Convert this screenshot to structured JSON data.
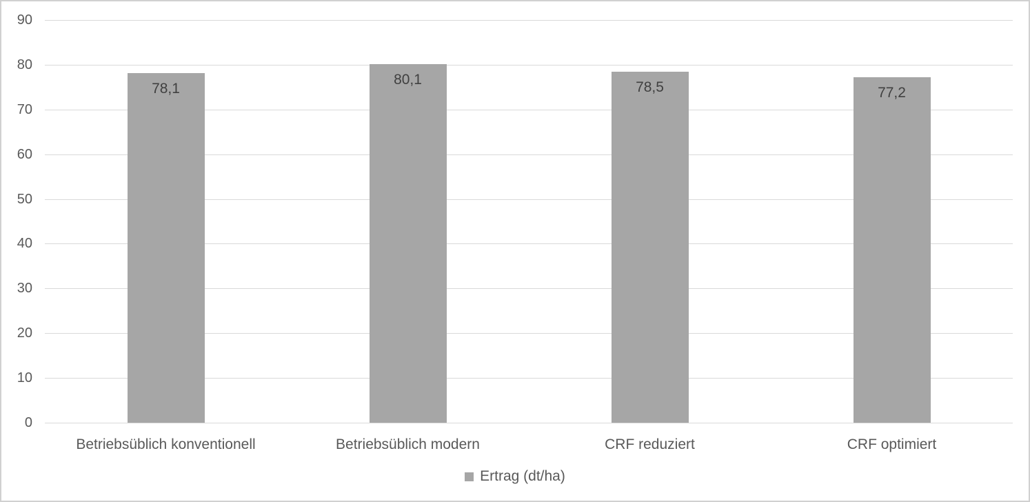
{
  "chart_data": {
    "type": "bar",
    "title": "",
    "xlabel": "",
    "ylabel": "",
    "categories": [
      "Betriebsüblich konventionell",
      "Betriebsüblich modern",
      "CRF reduziert",
      "CRF optimiert"
    ],
    "series": [
      {
        "name": "Ertrag (dt/ha)",
        "values": [
          78.1,
          80.1,
          78.5,
          77.2
        ],
        "value_labels": [
          "78,1",
          "80,1",
          "78,5",
          "77,2"
        ]
      }
    ],
    "ylim": [
      0,
      90
    ],
    "ytick_step": 10,
    "ytick_labels": [
      "0",
      "10",
      "20",
      "30",
      "40",
      "50",
      "60",
      "70",
      "80",
      "90"
    ],
    "grid": true,
    "legend_position": "bottom",
    "colors": {
      "bar": "#a6a6a6",
      "gridline": "#d9d9d9",
      "axis_text": "#595959",
      "value_label_text": "#404040",
      "chart_border": "#d0d0d0",
      "background": "#ffffff"
    }
  },
  "legend": {
    "label": "Ertrag (dt/ha)"
  }
}
